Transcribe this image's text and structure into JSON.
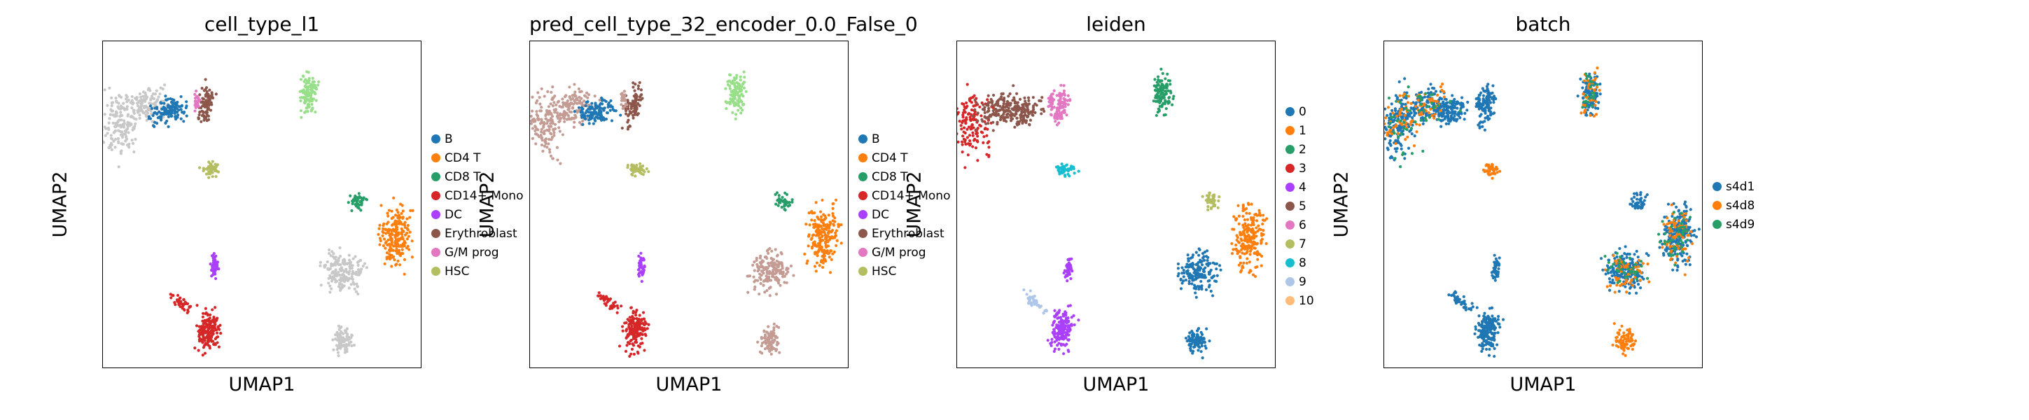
{
  "chart_data": [
    {
      "type": "scatter",
      "title": "cell_type_l1",
      "xlabel": "UMAP1",
      "ylabel": "UMAP2",
      "legend": "right",
      "grid": false,
      "legend_entries": [
        {
          "label": "B",
          "color": "#1f77b4"
        },
        {
          "label": "CD4 T",
          "color": "#ff7f0e"
        },
        {
          "label": "CD8 T",
          "color": "#279e68"
        },
        {
          "label": "CD14+ Mono",
          "color": "#d62728"
        },
        {
          "label": "DC",
          "color": "#aa40fc"
        },
        {
          "label": "Erythroblast",
          "color": "#8c564b"
        },
        {
          "label": "G/M prog",
          "color": "#e377c2"
        },
        {
          "label": "HSC",
          "color": "#b5bd61"
        }
      ]
    },
    {
      "type": "scatter",
      "title": "pred_cell_type_32_encoder_0.0_False_0",
      "xlabel": "UMAP1",
      "ylabel": "UMAP2",
      "legend": "right",
      "grid": false,
      "legend_entries": [
        {
          "label": "B",
          "color": "#1f77b4"
        },
        {
          "label": "CD4 T",
          "color": "#ff7f0e"
        },
        {
          "label": "CD8 T",
          "color": "#279e68"
        },
        {
          "label": "CD14+ Mono",
          "color": "#d62728"
        },
        {
          "label": "DC",
          "color": "#aa40fc"
        },
        {
          "label": "Erythroblast",
          "color": "#8c564b"
        },
        {
          "label": "G/M prog",
          "color": "#e377c2"
        },
        {
          "label": "HSC",
          "color": "#b5bd61"
        }
      ]
    },
    {
      "type": "scatter",
      "title": "leiden",
      "xlabel": "UMAP1",
      "ylabel": "UMAP2",
      "legend": "right",
      "grid": false,
      "legend_entries": [
        {
          "label": "0",
          "color": "#1f77b4"
        },
        {
          "label": "1",
          "color": "#ff7f0e"
        },
        {
          "label": "2",
          "color": "#279e68"
        },
        {
          "label": "3",
          "color": "#d62728"
        },
        {
          "label": "4",
          "color": "#aa40fc"
        },
        {
          "label": "5",
          "color": "#8c564b"
        },
        {
          "label": "6",
          "color": "#e377c2"
        },
        {
          "label": "7",
          "color": "#b5bd61"
        },
        {
          "label": "8",
          "color": "#17becf"
        },
        {
          "label": "9",
          "color": "#aec7e8"
        },
        {
          "label": "10",
          "color": "#ffbb78"
        }
      ]
    },
    {
      "type": "scatter",
      "title": "batch",
      "xlabel": "UMAP1",
      "ylabel": "UMAP2",
      "legend": "right",
      "grid": false,
      "legend_entries": [
        {
          "label": "s4d1",
          "color": "#1f77b4"
        },
        {
          "label": "s4d8",
          "color": "#ff7f0e"
        },
        {
          "label": "s4d9",
          "color": "#279e68"
        }
      ]
    }
  ]
}
